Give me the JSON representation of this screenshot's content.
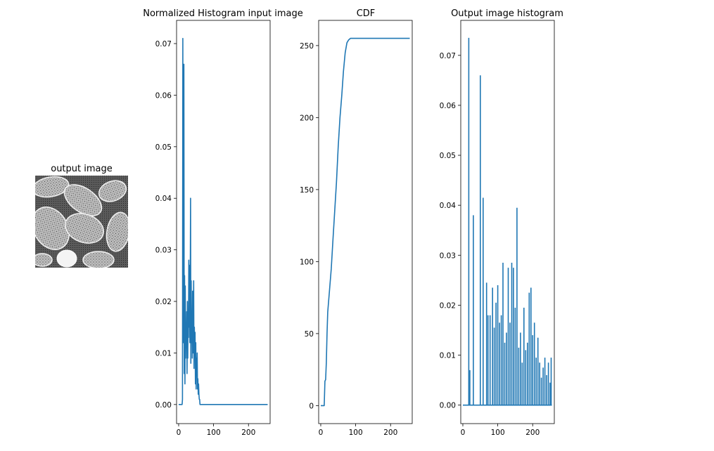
{
  "image_panel": {
    "title": "output image"
  },
  "chart_data": [
    {
      "type": "line",
      "title": "Normalized Histogram input image",
      "xlabel": "",
      "ylabel": "",
      "xlim": [
        -6,
        262
      ],
      "ylim": [
        -0.0037,
        0.0745
      ],
      "xticks": [
        0,
        100,
        200
      ],
      "yticks": [
        0.0,
        0.01,
        0.02,
        0.03,
        0.04,
        0.05,
        0.06,
        0.07
      ],
      "ytick_labels": [
        "0.00",
        "0.01",
        "0.02",
        "0.03",
        "0.04",
        "0.05",
        "0.06",
        "0.07"
      ],
      "grid": false,
      "color": "#1f77b4",
      "series": [
        {
          "x": [
            0,
            10,
            11,
            12,
            13,
            14,
            15,
            16,
            17,
            18,
            19,
            20,
            21,
            22,
            23,
            24,
            25,
            26,
            27,
            28,
            29,
            30,
            31,
            32,
            33,
            34,
            35,
            36,
            37,
            38,
            39,
            40,
            41,
            42,
            43,
            44,
            45,
            46,
            47,
            48,
            49,
            50,
            51,
            52,
            53,
            54,
            55,
            56,
            57,
            58,
            59,
            60,
            61,
            62,
            63,
            64,
            65,
            66,
            67,
            68,
            69,
            70,
            71,
            72,
            73,
            74,
            75,
            76,
            77,
            78,
            79,
            80,
            85,
            255
          ],
          "y": [
            0,
            0,
            0.001,
            0.071,
            0.012,
            0.038,
            0.066,
            0.006,
            0.025,
            0.004,
            0.023,
            0.009,
            0.015,
            0.011,
            0.018,
            0.006,
            0.02,
            0.009,
            0.017,
            0.013,
            0.028,
            0.015,
            0.027,
            0.012,
            0.021,
            0.04,
            0.008,
            0.024,
            0.012,
            0.018,
            0.009,
            0.022,
            0.01,
            0.016,
            0.024,
            0.007,
            0.015,
            0.01,
            0.014,
            0.004,
            0.012,
            0.003,
            0.009,
            0.006,
            0.01,
            0.003,
            0.005,
            0.002,
            0.004,
            0.002,
            0.001,
            0.001,
            0,
            0,
            0,
            0,
            0,
            0,
            0,
            0,
            0,
            0,
            0,
            0,
            0,
            0,
            0,
            0,
            0,
            0,
            0,
            0,
            0,
            0
          ]
        }
      ]
    },
    {
      "type": "line",
      "title": "CDF",
      "xlabel": "",
      "ylabel": "",
      "xlim": [
        -6,
        262
      ],
      "ylim": [
        -12.5,
        267.5
      ],
      "xticks": [
        0,
        100,
        200
      ],
      "yticks": [
        0,
        50,
        100,
        150,
        200,
        250
      ],
      "ytick_labels": [
        "0",
        "50",
        "100",
        "150",
        "200",
        "250"
      ],
      "grid": false,
      "color": "#1f77b4",
      "series": [
        {
          "x": [
            0,
            10,
            12,
            14,
            16,
            18,
            20,
            25,
            30,
            35,
            40,
            45,
            48,
            50,
            55,
            60,
            65,
            70,
            75,
            80,
            85,
            90,
            255
          ],
          "y": [
            0,
            0,
            17,
            18,
            30,
            50,
            65,
            80,
            95,
            115,
            135,
            155,
            170,
            180,
            200,
            215,
            232,
            245,
            252,
            254,
            255,
            255,
            255
          ]
        }
      ]
    },
    {
      "type": "bar",
      "title": "Output image histogram",
      "xlabel": "",
      "ylabel": "",
      "xlim": [
        -6,
        262
      ],
      "ylim": [
        -0.0037,
        0.077
      ],
      "xticks": [
        0,
        100,
        200
      ],
      "yticks": [
        0.0,
        0.01,
        0.02,
        0.03,
        0.04,
        0.05,
        0.06,
        0.07
      ],
      "ytick_labels": [
        "0.00",
        "0.01",
        "0.02",
        "0.03",
        "0.04",
        "0.05",
        "0.06",
        "0.07"
      ],
      "grid": false,
      "color": "#1f77b4",
      "x": [
        17,
        20,
        30,
        50,
        58,
        68,
        72,
        78,
        85,
        90,
        95,
        100,
        105,
        110,
        115,
        120,
        125,
        130,
        135,
        140,
        145,
        150,
        155,
        160,
        165,
        170,
        175,
        180,
        185,
        190,
        195,
        200,
        205,
        210,
        215,
        220,
        225,
        230,
        235,
        240,
        245,
        250,
        253
      ],
      "values": [
        0.0735,
        0.007,
        0.038,
        0.066,
        0.0415,
        0.0245,
        0.018,
        0.018,
        0.0235,
        0.0155,
        0.0205,
        0.024,
        0.0165,
        0.018,
        0.0285,
        0.0125,
        0.0145,
        0.0275,
        0.0165,
        0.0285,
        0.0275,
        0.0195,
        0.0395,
        0.0115,
        0.0145,
        0.0085,
        0.0195,
        0.011,
        0.0125,
        0.0225,
        0.0235,
        0.014,
        0.0165,
        0.0095,
        0.0135,
        0.0085,
        0.0055,
        0.0075,
        0.0095,
        0.006,
        0.0085,
        0.0045,
        0.0095
      ]
    }
  ]
}
